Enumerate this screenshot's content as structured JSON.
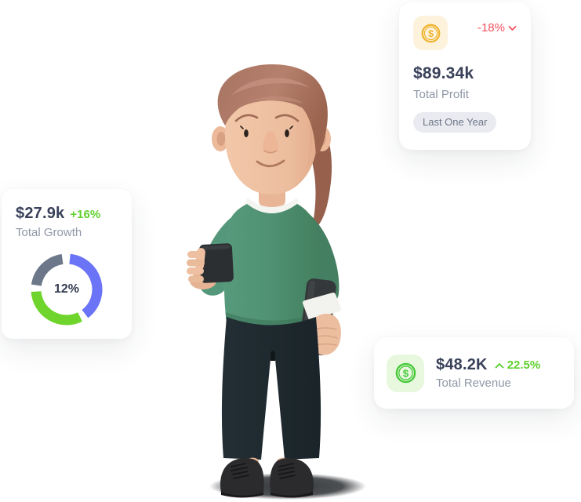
{
  "page": {
    "background": "#ffffff"
  },
  "cards": {
    "profit": {
      "value": "$89.34k",
      "label": "Total Profit",
      "delta": "-18%",
      "badge": "Last One Year",
      "icon": "dollar-coin-icon",
      "colors": {
        "delta": "#f4515f",
        "icon": "#f0b32e",
        "icon_bg": "#fdf3dd"
      }
    },
    "growth": {
      "value": "$27.9k",
      "delta": "+16%",
      "label": "Total Growth",
      "colors": {
        "delta": "#69d52c"
      }
    },
    "revenue": {
      "value": "$48.2K",
      "delta": "22.5%",
      "label": "Total Revenue",
      "icon": "dollar-coin-icon",
      "colors": {
        "delta": "#59cf2e",
        "icon": "#47c93a",
        "icon_bg": "#e7f8df"
      }
    }
  },
  "chart_data": {
    "type": "donut",
    "location": "growth-card",
    "center_label": "12%",
    "value_pct": 12,
    "ring_stroke_px": 13,
    "segments": [
      {
        "name": "blue-segment",
        "color": "#6b73f6",
        "start_deg": 6,
        "end_deg": 143
      },
      {
        "name": "green-segment",
        "color": "#6fd52c",
        "start_deg": 154,
        "end_deg": 266
      },
      {
        "name": "gray-segment",
        "color": "#6c7789",
        "start_deg": 278,
        "end_deg": 352
      }
    ],
    "legend": false
  }
}
